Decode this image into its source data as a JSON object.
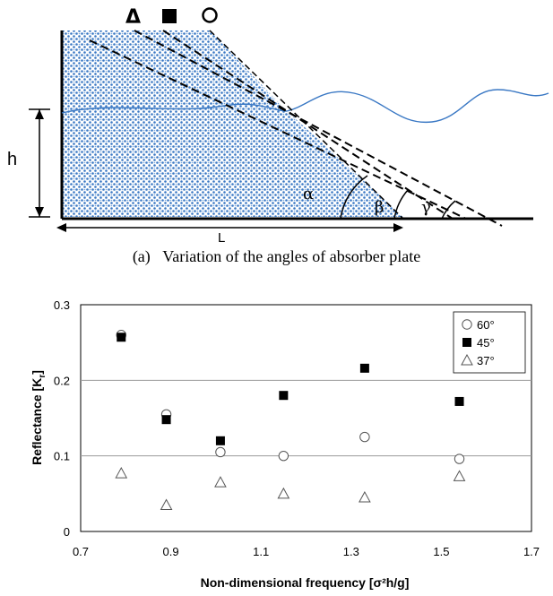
{
  "diagram": {
    "h_label": "h",
    "L_label": "L",
    "alpha_label": "α",
    "beta_label": "β",
    "gamma_label": "γ",
    "marker_triangle": "Δ",
    "marker_square": "■",
    "marker_circle": "O"
  },
  "caption": "(a)   Variation of the angles of absorber plate",
  "chart_data": {
    "type": "scatter",
    "xlabel": "Non-dimensional frequency [σ²h/g]",
    "ylabel": "Reflectance [K",
    "ylabel_sub": "r",
    "ylabel_close": "]",
    "xlim": [
      0.7,
      1.7
    ],
    "ylim": [
      0,
      0.3
    ],
    "x_ticks": [
      "0.7",
      "0.9",
      "1.1",
      "1.3",
      "1.5",
      "1.7"
    ],
    "y_ticks": [
      "0",
      "0.1",
      "0.2",
      "0.3"
    ],
    "grid": "horizontal",
    "legend": "top-right",
    "series": [
      {
        "name": "60°",
        "marker": "circle",
        "x": [
          0.79,
          0.89,
          1.01,
          1.15,
          1.33,
          1.54
        ],
        "y": [
          0.26,
          0.155,
          0.105,
          0.1,
          0.125,
          0.096
        ]
      },
      {
        "name": "45°",
        "marker": "square",
        "x": [
          0.79,
          0.89,
          1.01,
          1.15,
          1.33,
          1.54
        ],
        "y": [
          0.257,
          0.148,
          0.12,
          0.18,
          0.216,
          0.172
        ]
      },
      {
        "name": "37°",
        "marker": "triangle",
        "x": [
          0.79,
          0.89,
          1.01,
          1.15,
          1.33,
          1.54
        ],
        "y": [
          0.077,
          0.035,
          0.065,
          0.05,
          0.045,
          0.073
        ]
      }
    ]
  }
}
